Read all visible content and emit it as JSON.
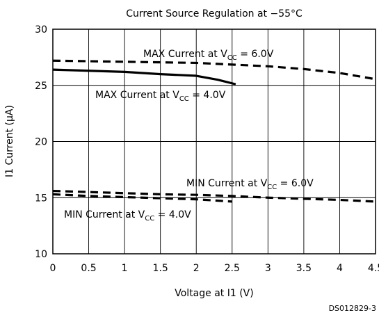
{
  "chart_data": {
    "type": "line",
    "title": "Current Source Regulation at −55°C",
    "xlabel": "Voltage at I1 (V)",
    "ylabel": "I1 Current (μA)",
    "xlim": [
      0,
      4.5
    ],
    "ylim": [
      10,
      30
    ],
    "xticks": [
      0,
      0.5,
      1,
      1.5,
      2,
      2.5,
      3,
      3.5,
      4,
      4.5
    ],
    "xtick_labels": [
      "0",
      "0.5",
      "1",
      "1.5",
      "2",
      "2.5",
      "3",
      "3.5",
      "4",
      "4.5"
    ],
    "yticks": [
      10,
      15,
      20,
      25,
      30
    ],
    "ytick_labels": [
      "10",
      "15",
      "20",
      "25",
      "30"
    ],
    "grid": true,
    "series": [
      {
        "name": "MAX Current at VCC = 6.0V",
        "style": "dashed",
        "x": [
          0,
          0.5,
          1,
          1.5,
          2,
          2.5,
          3,
          3.5,
          4,
          4.5
        ],
        "y": [
          27.2,
          27.15,
          27.1,
          27.05,
          27.0,
          26.85,
          26.7,
          26.45,
          26.1,
          25.55
        ]
      },
      {
        "name": "MAX Current at VCC = 4.0V",
        "style": "solid",
        "x": [
          0,
          0.5,
          1,
          1.5,
          2,
          2.3,
          2.55
        ],
        "y": [
          26.4,
          26.3,
          26.2,
          26.0,
          25.85,
          25.5,
          25.1
        ]
      },
      {
        "name": "MIN Current at VCC = 6.0V",
        "style": "dashed",
        "x": [
          0,
          0.5,
          1,
          1.5,
          2,
          2.5,
          3,
          3.5,
          4,
          4.5
        ],
        "y": [
          15.6,
          15.5,
          15.4,
          15.3,
          15.25,
          15.15,
          15.0,
          14.9,
          14.8,
          14.65
        ]
      },
      {
        "name": "MIN Current at VCC = 4.0V",
        "style": "dashed",
        "x": [
          0,
          0.5,
          1,
          1.5,
          2,
          2.5
        ],
        "y": [
          15.3,
          15.15,
          15.05,
          14.95,
          14.85,
          14.65
        ]
      }
    ],
    "annotations": [
      {
        "id": "max6",
        "main": "MAX Current at V",
        "sub": "CC",
        "tail": " = 6.0V"
      },
      {
        "id": "max4",
        "main": "MAX Current at V",
        "sub": "CC",
        "tail": " = 4.0V"
      },
      {
        "id": "min6",
        "main": "MIN Current at V",
        "sub": "CC",
        "tail": " = 6.0V"
      },
      {
        "id": "min4",
        "main": "MIN Current at V",
        "sub": "CC",
        "tail": " = 4.0V"
      }
    ],
    "figure_code": "DS012829-3"
  }
}
